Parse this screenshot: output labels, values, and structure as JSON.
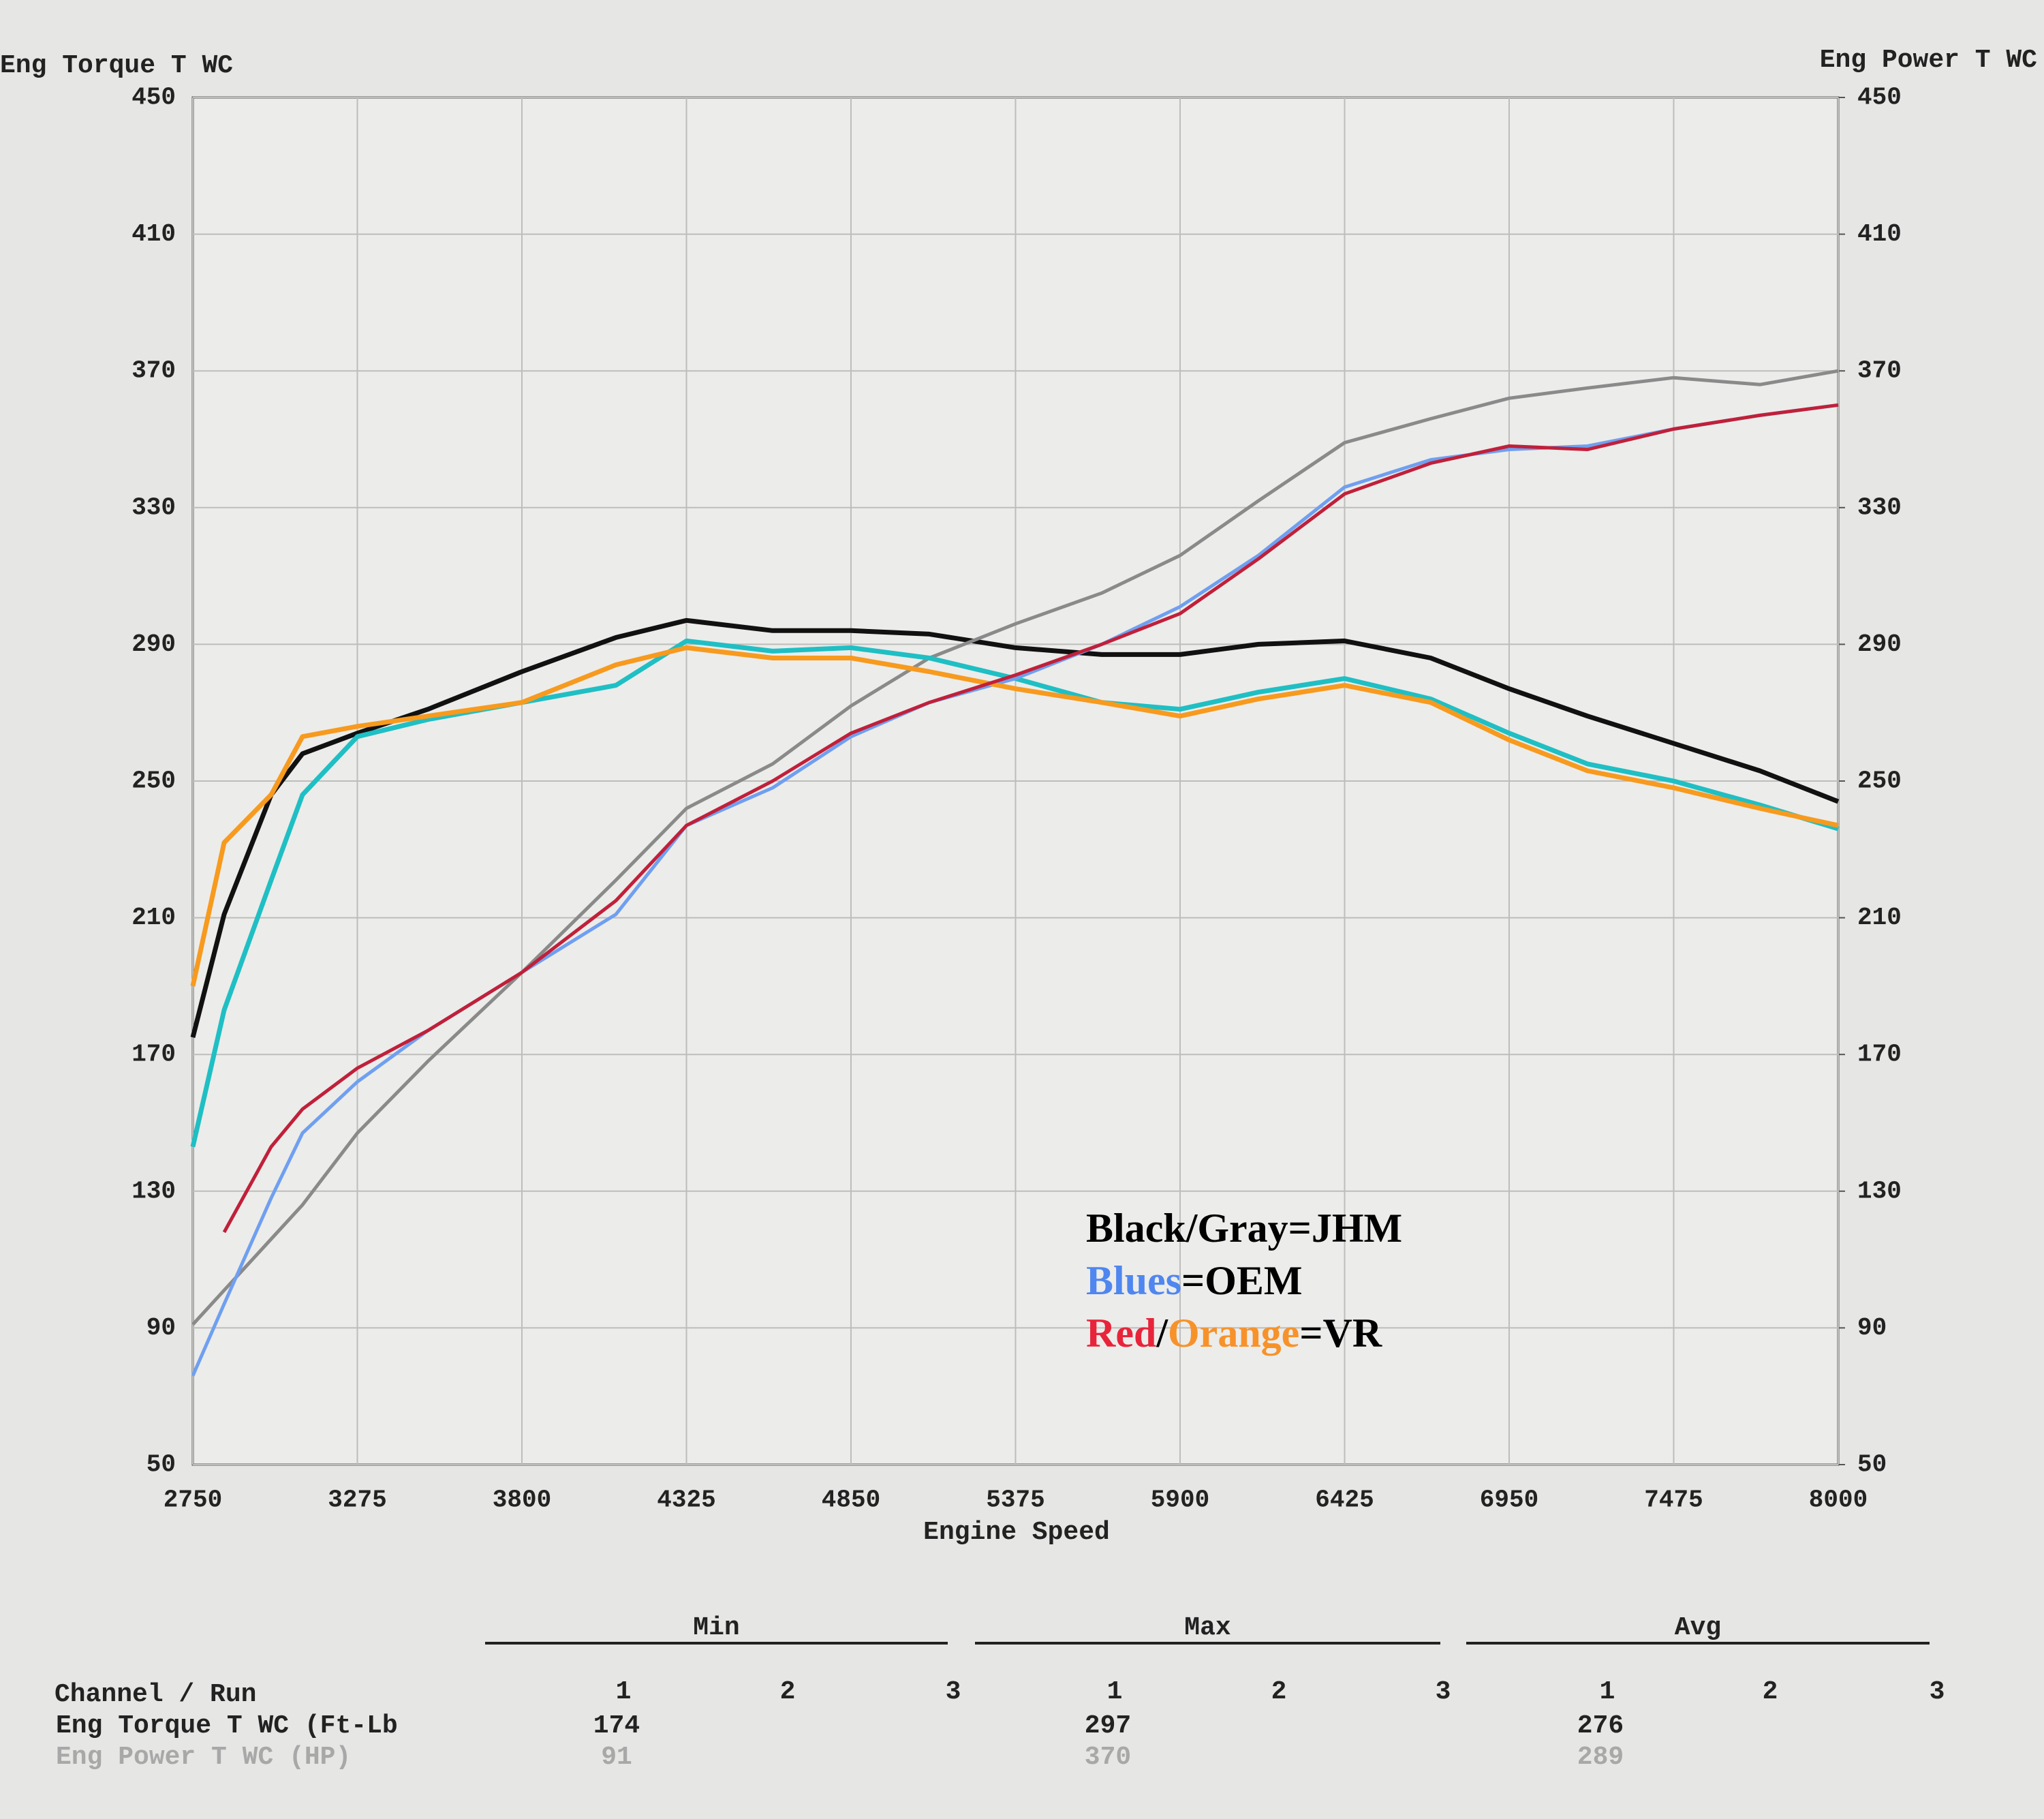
{
  "chart_data": {
    "type": "line",
    "y_label": "Eng Torque T WC",
    "y2_label": "Eng Power T WC",
    "x_label": "Engine Speed",
    "x": [
      2750,
      2850,
      3000,
      3100,
      3275,
      3500,
      3800,
      4100,
      4325,
      4600,
      4850,
      5100,
      5375,
      5650,
      5900,
      6150,
      6425,
      6700,
      6950,
      7200,
      7475,
      7750,
      8000
    ],
    "xlim": [
      2750,
      8000
    ],
    "xticks": [
      2750,
      3275,
      3800,
      4325,
      4850,
      5375,
      5900,
      6425,
      6950,
      7475,
      8000
    ],
    "ylim": [
      50,
      450
    ],
    "yticks": [
      50,
      90,
      130,
      170,
      210,
      250,
      290,
      330,
      370,
      410,
      450
    ],
    "y2lim": [
      50,
      450
    ],
    "y2ticks": [
      50,
      90,
      130,
      170,
      210,
      250,
      290,
      330,
      370,
      410,
      450
    ],
    "grid": true,
    "series": [
      {
        "color": "#111111",
        "values": [
          175,
          211,
          246,
          258,
          264,
          271,
          282,
          292,
          297,
          294,
          294,
          293,
          289,
          287,
          287,
          290,
          291,
          286,
          277,
          269,
          261,
          253,
          244
        ]
      },
      {
        "color": "#8a8a8a",
        "axis": "y2",
        "values": [
          91,
          101,
          116,
          126,
          147,
          168,
          194,
          221,
          242,
          255,
          272,
          286,
          296,
          305,
          316,
          332,
          349,
          356,
          362,
          365,
          368,
          366,
          370
        ]
      },
      {
        "color": "#1fbfc4",
        "values": [
          143,
          183,
          221,
          246,
          263,
          268,
          273,
          278,
          291,
          288,
          289,
          286,
          280,
          273,
          271,
          276,
          280,
          274,
          264,
          255,
          250,
          243,
          236
        ]
      },
      {
        "color": "#6f9ff0",
        "axis": "y2",
        "values": [
          76,
          97,
          128,
          147,
          162,
          177,
          194,
          211,
          237,
          248,
          263,
          273,
          280,
          290,
          301,
          316,
          336,
          344,
          347,
          348,
          353,
          357,
          360
        ]
      },
      {
        "color": "#f79a1e",
        "values": [
          190,
          232,
          246,
          263,
          266,
          269,
          273,
          284,
          289,
          286,
          286,
          282,
          277,
          273,
          269,
          274,
          278,
          273,
          262,
          253,
          248,
          242,
          237
        ]
      },
      {
        "color": "#c0203a",
        "axis": "y2",
        "values": [
          null,
          118,
          143,
          154,
          166,
          177,
          194,
          215,
          237,
          250,
          264,
          273,
          281,
          290,
          299,
          315,
          334,
          343,
          348,
          347,
          353,
          357,
          360
        ]
      }
    ],
    "annotations": [
      [
        {
          "text": "Black/Gray",
          "color": "#000000"
        },
        {
          "text": "=JHM",
          "color": "#000000"
        }
      ],
      [
        {
          "text": "Blues",
          "color": "#4f86f0"
        },
        {
          "text": "=OEM",
          "color": "#000000"
        }
      ],
      [
        {
          "text": "Red",
          "color": "#e8243a"
        },
        {
          "text": "/",
          "color": "#000000"
        },
        {
          "text": "Orange",
          "color": "#f7922a"
        },
        {
          "text": "=VR",
          "color": "#000000"
        }
      ]
    ]
  },
  "stats": {
    "groups": [
      "Min",
      "Max",
      "Avg"
    ],
    "header": "Channel / Run",
    "runs": [
      1,
      2,
      3
    ],
    "rows": [
      {
        "channel": "Eng Torque T WC (Ft-Lb",
        "color": "#222222",
        "values": [
          174,
          297,
          276
        ]
      },
      {
        "channel": "Eng Power T WC (HP)",
        "color": "#a8a8a8",
        "values": [
          91,
          370,
          289
        ]
      }
    ]
  }
}
